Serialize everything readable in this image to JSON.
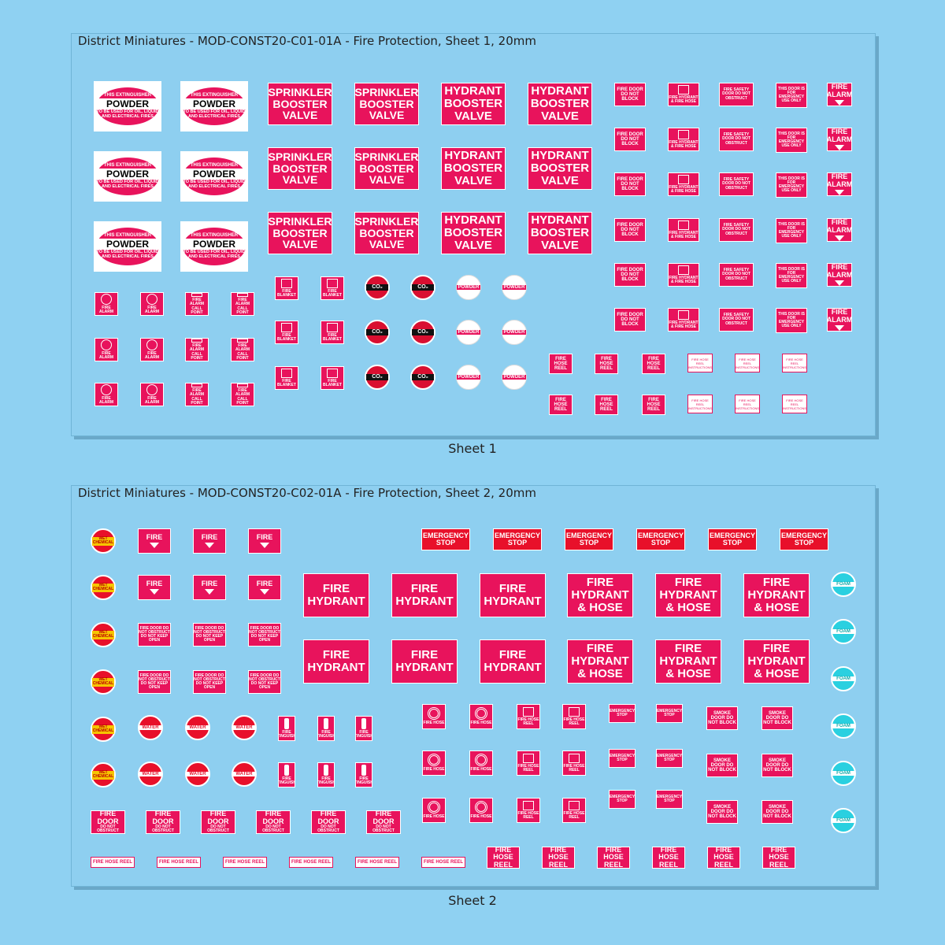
{
  "sheet1": {
    "title": "District Miniatures - MOD-CONST20-C01-01A - Fire Protection, Sheet 1, 20mm",
    "caption": "Sheet 1",
    "powder": {
      "top": "THIS EXTINGUISHER",
      "unit": "UNIT NO.",
      "main": "POWDER",
      "sub": "B(E)",
      "bottom": "TO BE USED FOR OIL, LIQUID AND ELECTRICAL FIRES"
    },
    "sprinkler": "SPRINKLER BOOSTER VALVE",
    "hydrant_booster": "HYDRANT BOOSTER VALVE",
    "fire_door_block": "FIRE DOOR DO NOT BLOCK",
    "fire_hydrant_hose": "FIRE HYDRANT & FIRE HOSE",
    "fire_safety_door": "FIRE SAFETY DOOR DO NOT OBSTRUCT",
    "emergency_door": "THIS DOOR IS FOR EMERGENCY USE ONLY",
    "fire_alarm_arrow": "FIRE ALARM",
    "fire_alarm": "FIRE ALARM",
    "call_point": "FIRE ALARM CALL POINT",
    "fire_blanket": "FIRE BLANKET",
    "co2": "CO₂",
    "co2_sub": "TO BE USED FOR FLAMMABLE LIQUIDS AND ELECTRICAL FIRES",
    "powder_small": "POWDER",
    "fire_hose_reel": "FIRE HOSE REEL",
    "instructions": "FIRE HOSE REEL INSTRUCTIONS"
  },
  "sheet2": {
    "title": "District Miniatures - MOD-CONST20-C02-01A - Fire Protection, Sheet 2, 20mm",
    "caption": "Sheet 2",
    "wet_chemical": "WET CHEMICAL",
    "wet_sub": "TO BE USED FOR COOKING OILS AND FATS",
    "fire_extinguisher": "FIRE",
    "extinguisher_sub": "EXTINGUISHER",
    "fire_door_keep": "FIRE DOOR DO NOT OBSTRUCT DO NOT KEEP OPEN",
    "water": "WATER",
    "water_sub": "TO BE USED FOR WOOD, PAPER AND TEXTILE FIRES",
    "fire_ext_small": "FIRE EXTINGUISHER",
    "fire_door": "FIRE DOOR",
    "do_not_obstruct": "DO NOT OBSTRUCT",
    "fire_hose_reel_strip": "FIRE HOSE REEL",
    "emergency_stop": "EMERGENCY STOP",
    "fire_hydrant": "FIRE HYDRANT",
    "fire_hydrant_hose": "FIRE HYDRANT & HOSE",
    "foam": "FOAM",
    "foam_sub": "TO BE USED FOR FLAMMABLE LIQUID FIRES",
    "fire_hose": "FIRE HOSE",
    "fire_hose_reel": "FIRE HOSE REEL",
    "emergency_stop_small": "EMERGENCY STOP",
    "smoke_door": "SMOKE DOOR DO NOT BLOCK",
    "fire_hose_reel_big": "FIRE HOSE REEL"
  },
  "colors": {
    "background": "#8fd1f2",
    "sign_red": "#e8135c",
    "bright_red": "#e8102a",
    "foam_cyan": "#2ad0e0"
  }
}
